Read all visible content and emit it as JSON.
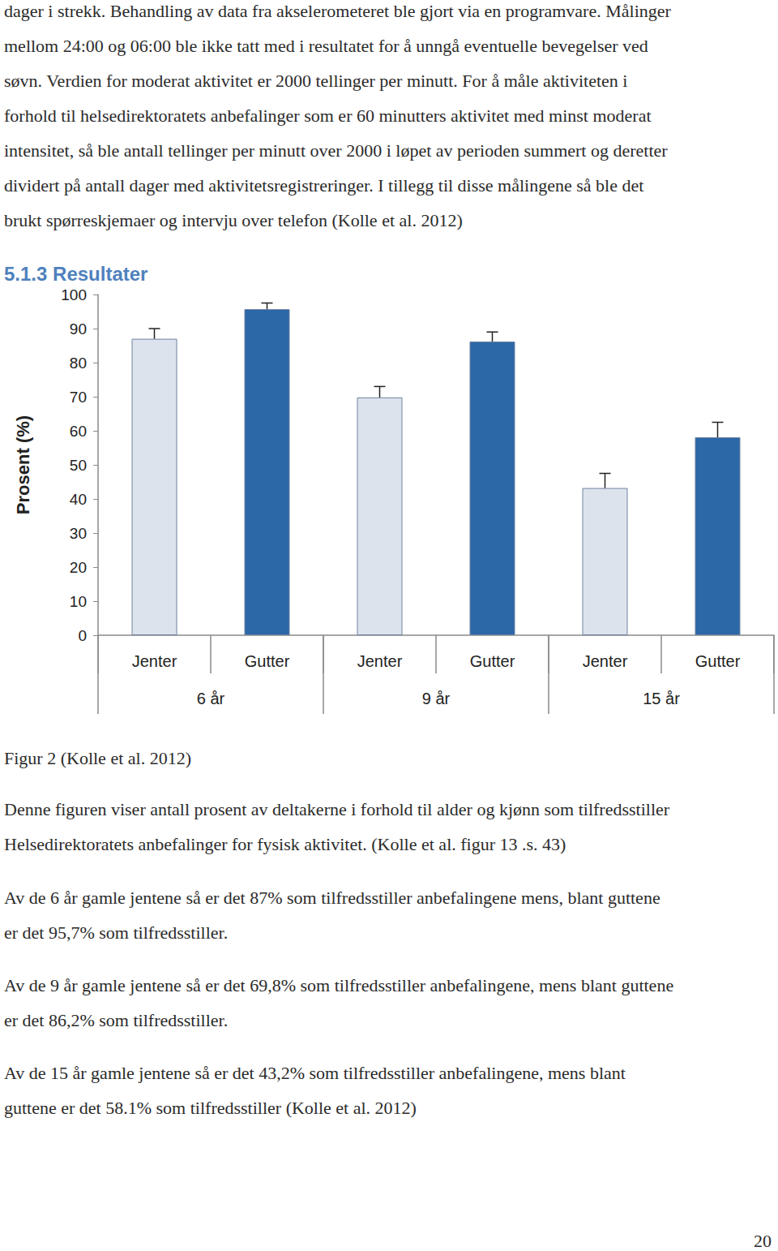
{
  "body_top": [
    "dager i strekk. Behandling av data fra akselerometeret ble gjort via en programvare. Målinger",
    "mellom 24:00 og 06:00 ble ikke tatt med i resultatet for å unngå eventuelle bevegelser ved",
    "søvn. Verdien for moderat aktivitet er 2000 tellinger per minutt. For å måle aktiviteten i",
    "forhold til helsedirektoratets anbefalinger som er 60 minutters aktivitet med minst moderat",
    "intensitet, så ble antall tellinger per minutt over 2000 i løpet av perioden summert og deretter",
    "dividert på antall dager med aktivitetsregistreringer. I tillegg til disse målingene så ble det",
    "brukt spørreskjemaer og intervju over telefon (Kolle et al. 2012)"
  ],
  "heading": "5.1.3 Resultater",
  "chart_data": {
    "type": "bar",
    "categories": [
      "Jenter",
      "Gutter",
      "Jenter",
      "Gutter",
      "Jenter",
      "Gutter"
    ],
    "groups": [
      "6 år",
      "9 år",
      "15 år"
    ],
    "values": [
      87,
      95.7,
      69.8,
      86.2,
      43.2,
      58.1
    ],
    "errors": [
      3,
      1.8,
      3.2,
      2.8,
      4.3,
      4.4
    ],
    "colors": [
      "#dde3ec",
      "#2c67a8",
      "#dde3ec",
      "#2c67a8",
      "#dde3ec",
      "#2c67a8"
    ],
    "ylabel": "Prosent (%)",
    "ylim": [
      0,
      100
    ],
    "yticks": [
      0,
      10,
      20,
      30,
      40,
      50,
      60,
      70,
      80,
      90,
      100
    ],
    "grid": false
  },
  "caption": "Figur 2 (Kolle et al. 2012)",
  "paragraphs": [
    [
      "Denne figuren viser antall prosent av deltakerne i forhold til alder og kjønn som tilfredsstiller",
      "Helsedirektoratets anbefalinger for fysisk aktivitet. (Kolle et al. figur 13 .s. 43)"
    ],
    [
      "Av de 6 år gamle jentene så er det 87% som tilfredsstiller anbefalingene mens, blant guttene",
      "er det 95,7% som tilfredsstiller."
    ],
    [
      "Av de 9 år gamle jentene så er det 69,8% som tilfredsstiller anbefalingene, mens blant guttene",
      "er det 86,2% som tilfredsstiller."
    ],
    [
      "Av de 15 år gamle jentene så er det 43,2% som tilfredsstiller anbefalingene, mens blant",
      "guttene er det 58.1% som tilfredsstiller (Kolle et al. 2012)"
    ]
  ],
  "page_number": "20"
}
